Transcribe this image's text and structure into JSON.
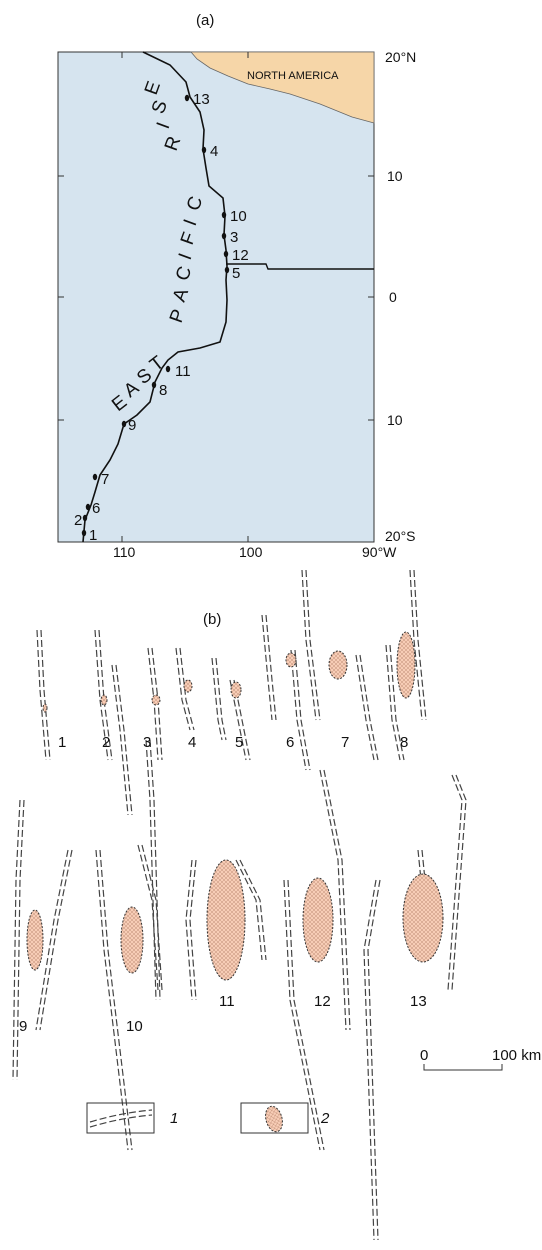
{
  "panel_a": {
    "label": "(a)",
    "north_america": "NORTH AMERICA",
    "ridge_name": "EAST PACIFIC RISE",
    "right_ticks": [
      "20°N",
      "10",
      "0",
      "10",
      "20°S"
    ],
    "bottom_ticks": [
      "110",
      "100",
      "90°W"
    ],
    "sites": [
      "1",
      "2",
      "3",
      "4",
      "5",
      "6",
      "7",
      "8",
      "9",
      "10",
      "11",
      "12",
      "13"
    ],
    "colors": {
      "ocean": "#d6e4ef",
      "land": "#f6d6a8",
      "ridge": "#111111"
    }
  },
  "panel_b": {
    "label": "(b)",
    "site_numbers": [
      "1",
      "2",
      "3",
      "4",
      "5",
      "6",
      "7",
      "8",
      "9",
      "10",
      "11",
      "12",
      "13"
    ],
    "scale_start": "0",
    "scale_end": "100 km",
    "legend": [
      {
        "key": "1",
        "icon": "dashed-fault-lines-icon"
      },
      {
        "key": "2",
        "icon": "hatched-lens-icon"
      }
    ],
    "colors": {
      "lens_fill": "#f7cdb6",
      "lens_outline": "#333333",
      "fault": "#444444"
    }
  }
}
